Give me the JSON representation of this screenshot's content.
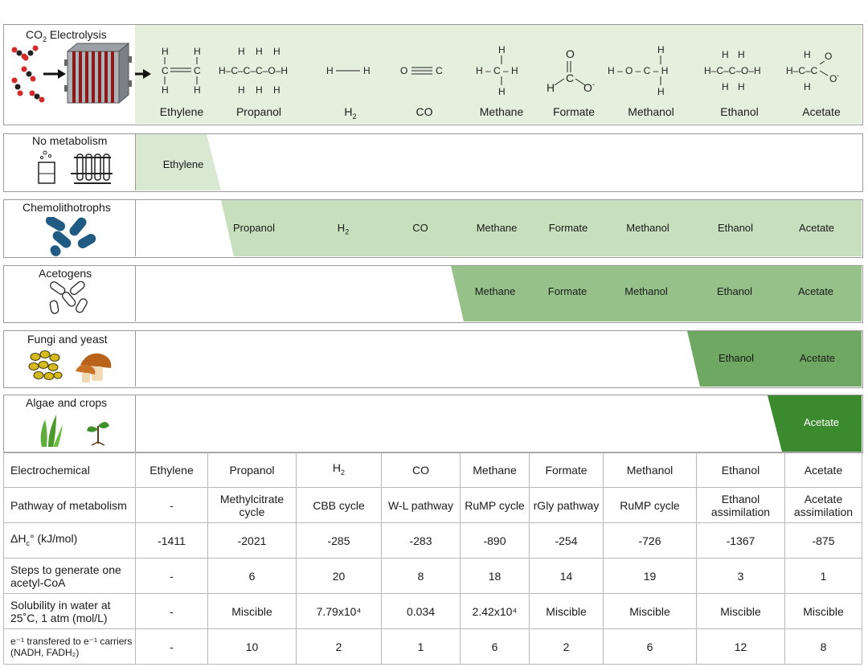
{
  "electrolysis": {
    "title": "CO",
    "title_sub": "2",
    "title_rest": " Electrolysis",
    "products": [
      "Ethylene",
      "Propanol",
      "H2",
      "CO",
      "Methane",
      "Formate",
      "Methanol",
      "Ethanol",
      "Acetate"
    ]
  },
  "organism_rows": [
    {
      "label": "No metabolism",
      "products": [
        "Ethylene"
      ],
      "color": "#d9e8d2"
    },
    {
      "label": "Chemolithotrophs",
      "products": [
        "Propanol",
        "H2",
        "CO",
        "Methane",
        "Formate",
        "Methanol",
        "Ethanol",
        "Acetate"
      ],
      "color": "#c8dfbd"
    },
    {
      "label": "Acetogens",
      "products": [
        "Methane",
        "Formate",
        "Methanol",
        "Ethanol",
        "Acetate"
      ],
      "color": "#96c28a"
    },
    {
      "label": "Fungi and yeast",
      "products": [
        "Ethanol",
        "Acetate"
      ],
      "color": "#6fa862"
    },
    {
      "label": "Algae and crops",
      "products": [
        "Acetate"
      ],
      "color": "#3c8a2e"
    }
  ],
  "table": {
    "headers": [
      "Electrochemical",
      "Ethylene",
      "Propanol",
      "H2",
      "CO",
      "Methane",
      "Formate",
      "Methanol",
      "Ethanol",
      "Acetate"
    ],
    "rows": [
      {
        "label": "Pathway of metabolism",
        "values": [
          "-",
          "Methylcitrate cycle",
          "CBB cycle",
          "W-L pathway",
          "RuMP cycle",
          "rGly pathway",
          "RuMP cycle",
          "Ethanol assimilation",
          "Acetate assimilation"
        ]
      },
      {
        "label": "ΔHc° (kJ/mol)",
        "values": [
          "-1411",
          "-2021",
          "-285",
          "-283",
          "-890",
          "-254",
          "-726",
          "-1367",
          "-875"
        ]
      },
      {
        "label": "Steps to generate one acetyl-CoA",
        "values": [
          "-",
          "6",
          "20",
          "8",
          "18",
          "14",
          "19",
          "3",
          "1"
        ]
      },
      {
        "label": "Solubility in water at 25˚C, 1 atm (mol/L)",
        "values": [
          "-",
          "Miscible",
          "7.79x10⁴",
          "0.034",
          "2.42x10⁴",
          "Miscible",
          "Miscible",
          "Miscible",
          "Miscible"
        ]
      },
      {
        "label": "e⁻¹ transfered to e⁻¹ carriers (NADH, FADH₂)",
        "values": [
          "-",
          "10",
          "2",
          "1",
          "6",
          "2",
          "6",
          "12",
          "8"
        ]
      }
    ]
  }
}
